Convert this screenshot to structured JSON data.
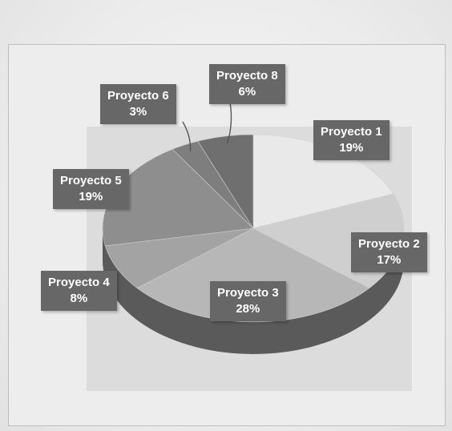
{
  "chart_data": {
    "type": "pie",
    "style": "3d",
    "slices": [
      {
        "label": "Proyecto 1",
        "pct": "19%",
        "value": 19,
        "color": "#e9e9e9"
      },
      {
        "label": "Proyecto 2",
        "pct": "17%",
        "value": 17,
        "color": "#cfcfcf"
      },
      {
        "label": "Proyecto 3",
        "pct": "28%",
        "value": 28,
        "color": "#b7b7b7"
      },
      {
        "label": "Proyecto 4",
        "pct": "8%",
        "value": 8,
        "color": "#a3a3a3"
      },
      {
        "label": "Proyecto 5",
        "pct": "19%",
        "value": 19,
        "color": "#8e8e8e"
      },
      {
        "label": "Proyecto 6",
        "pct": "3%",
        "value": 3,
        "color": "#7e7e7e"
      },
      {
        "label": "Proyecto 8",
        "pct": "6%",
        "value": 6,
        "color": "#6f6f6f"
      }
    ],
    "side_color": "#5a5a5a",
    "label_bg": "#676767"
  }
}
